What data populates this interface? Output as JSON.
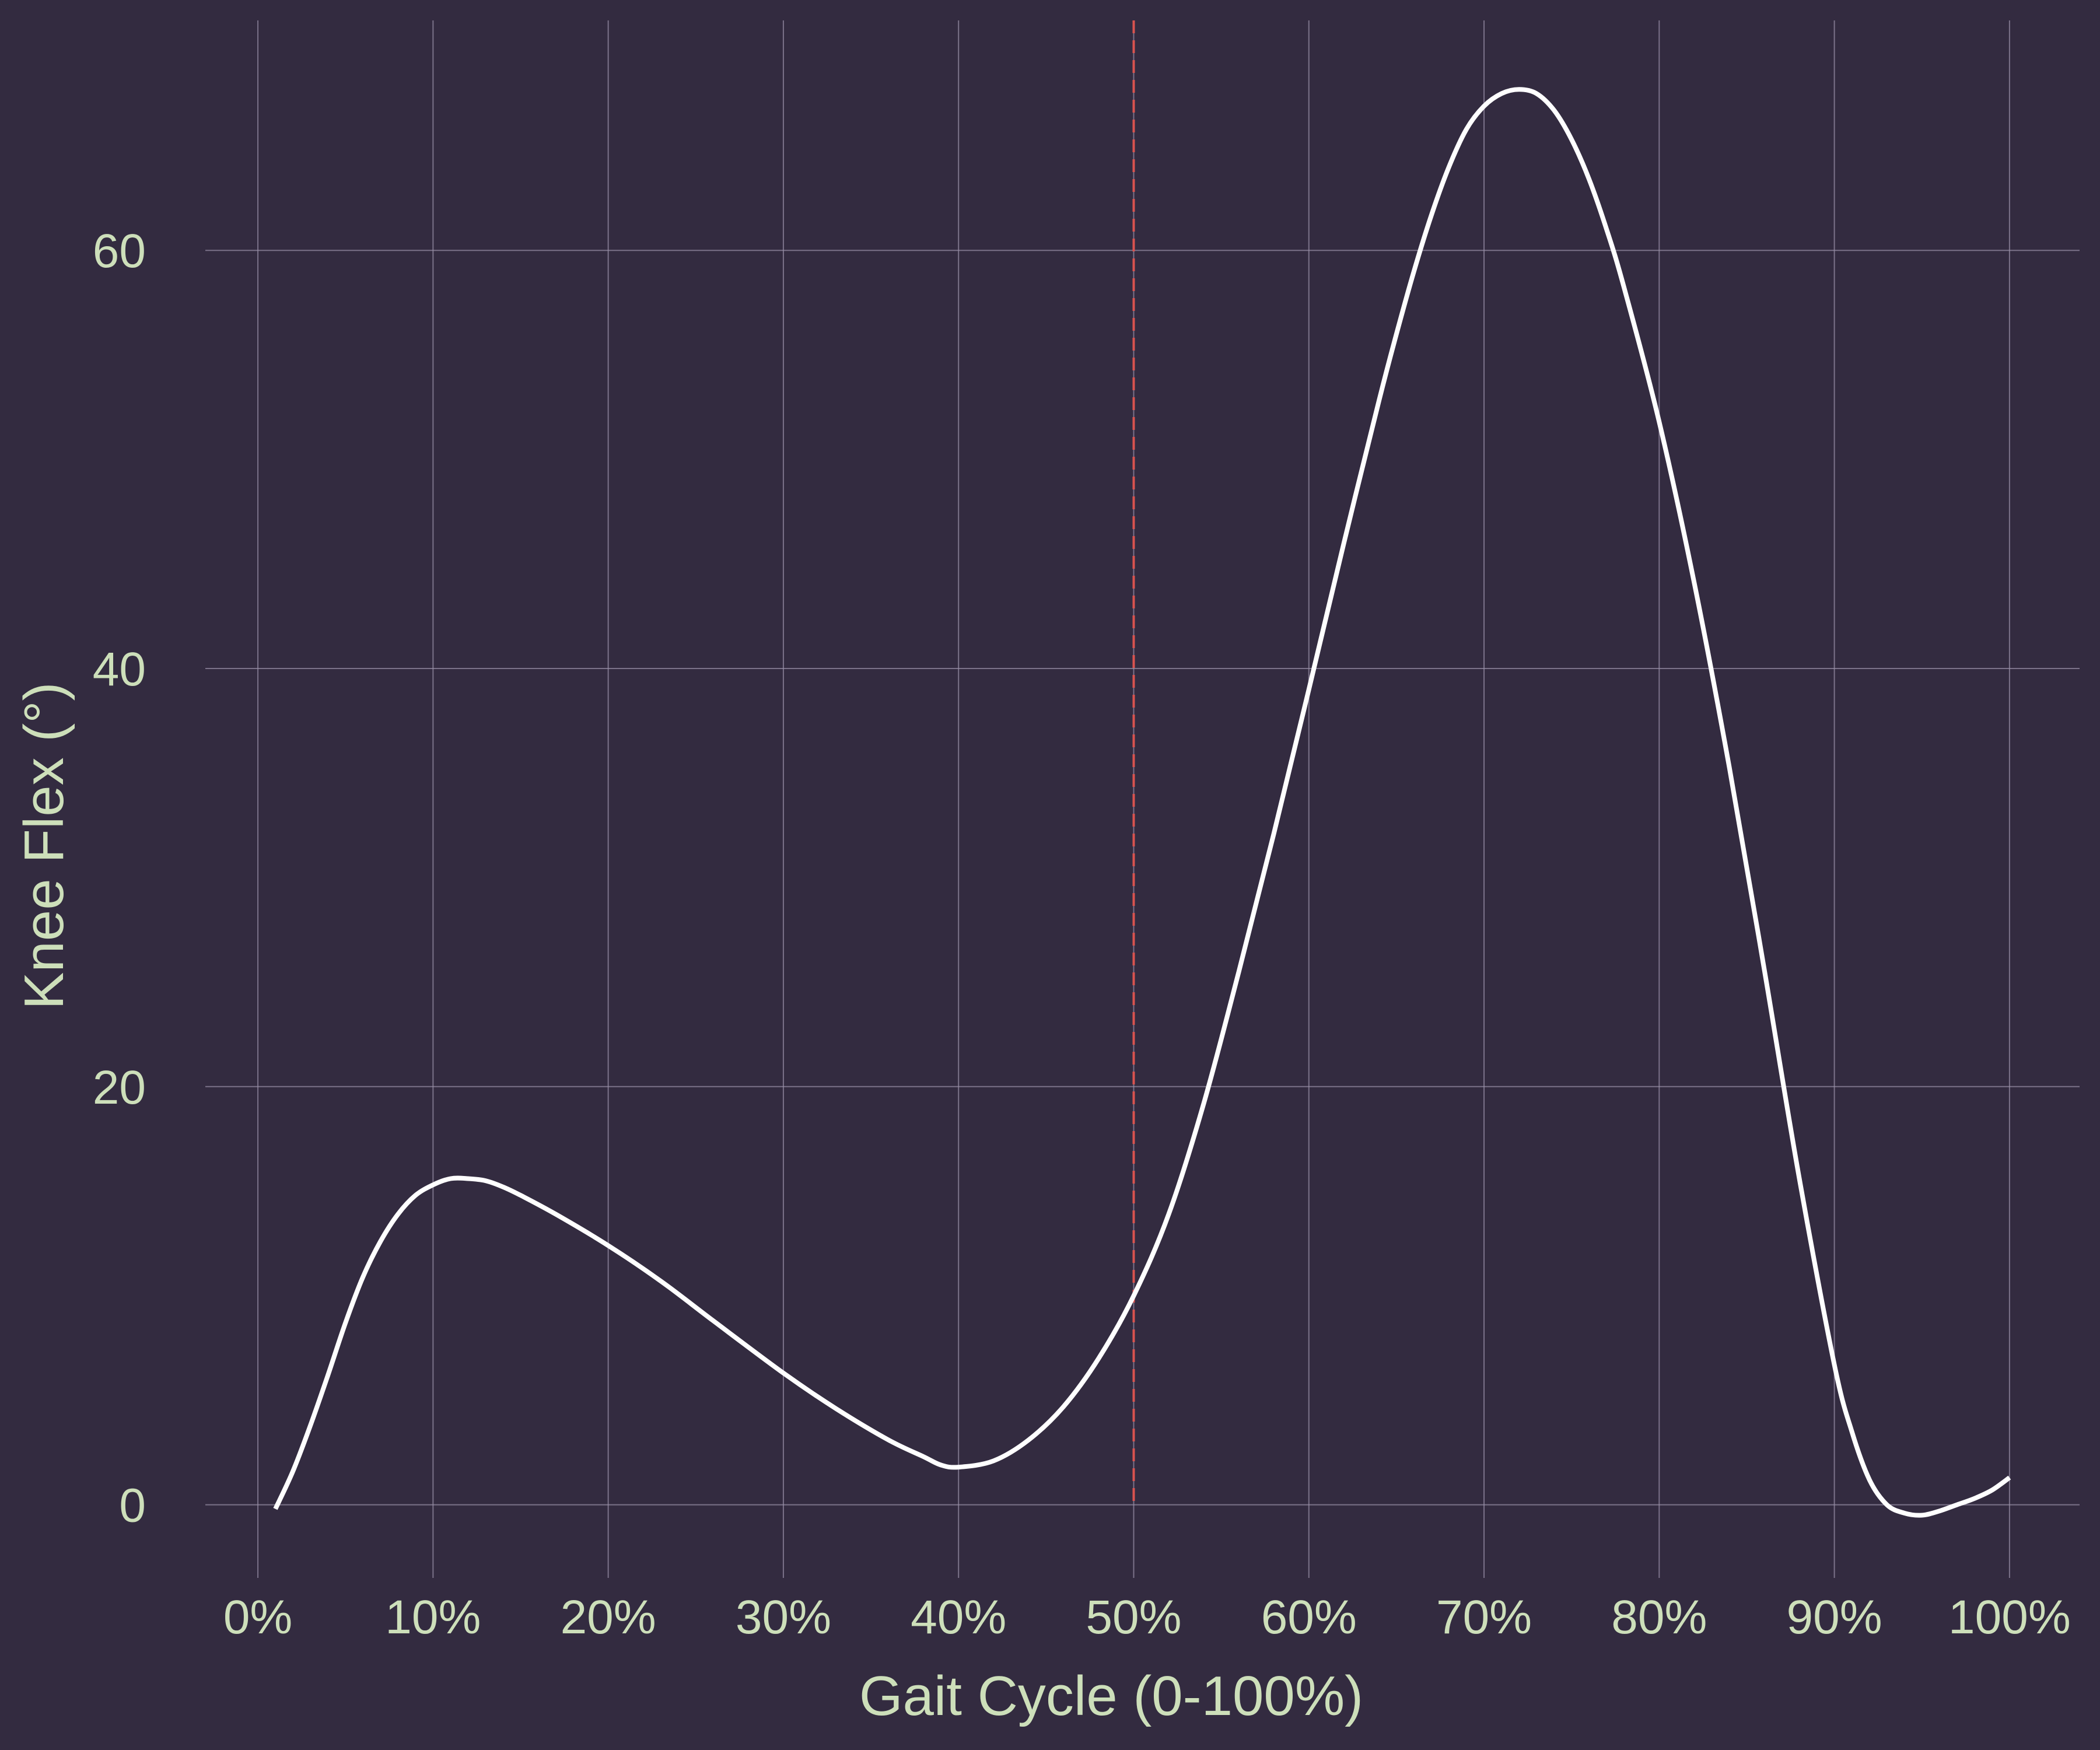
{
  "chart_data": {
    "type": "line",
    "title": "",
    "xlabel": "Gait Cycle (0-100%)",
    "ylabel": "Knee Flex (°)",
    "xlim": [
      -3,
      104
    ],
    "ylim": [
      -3.5,
      71
    ],
    "x_ticks": [
      0,
      10,
      20,
      30,
      40,
      50,
      60,
      70,
      80,
      90,
      100
    ],
    "x_tick_labels": [
      "0%",
      "10%",
      "20%",
      "30%",
      "40%",
      "50%",
      "60%",
      "70%",
      "80%",
      "90%",
      "100%"
    ],
    "y_ticks": [
      0,
      20,
      40,
      60
    ],
    "y_tick_labels": [
      "0",
      "20",
      "40",
      "60"
    ],
    "grid": true,
    "legend": "none",
    "reference_line": {
      "x": 50,
      "style": "dashed",
      "color": "#d9534f"
    },
    "series": [
      {
        "color": "#ffffff",
        "x": [
          1,
          2,
          3,
          4,
          5,
          6,
          7,
          8,
          9,
          10,
          11,
          12,
          13,
          14,
          15,
          17,
          20,
          23,
          26,
          30,
          33,
          36,
          38,
          39,
          40,
          42,
          44,
          46,
          48,
          50,
          52,
          54,
          56,
          58,
          60,
          62,
          64,
          65,
          66,
          67,
          68,
          69,
          70,
          71,
          72,
          73,
          74,
          75,
          76,
          77,
          78,
          80,
          82,
          84,
          86,
          88,
          90,
          91,
          92,
          93,
          94,
          95,
          96,
          97,
          98,
          99,
          100
        ],
        "y": [
          -0.2,
          1.6,
          3.8,
          6.2,
          8.7,
          10.9,
          12.6,
          13.9,
          14.8,
          15.3,
          15.6,
          15.6,
          15.5,
          15.2,
          14.8,
          13.9,
          12.4,
          10.7,
          8.8,
          6.3,
          4.6,
          3.1,
          2.3,
          1.9,
          1.8,
          2.1,
          3.1,
          4.7,
          7.0,
          10.0,
          13.9,
          19.2,
          25.5,
          32.1,
          39.0,
          46.0,
          52.8,
          56.0,
          59.0,
          61.7,
          64.0,
          65.8,
          66.9,
          67.5,
          67.7,
          67.5,
          66.7,
          65.3,
          63.4,
          61.0,
          58.2,
          51.8,
          44.1,
          35.3,
          25.6,
          15.6,
          6.7,
          3.5,
          1.2,
          0.0,
          -0.4,
          -0.5,
          -0.3,
          0.0,
          0.3,
          0.7,
          1.3
        ]
      }
    ]
  },
  "colors": {
    "background": "#332b40",
    "grid": "#9a92a8",
    "text": "#cddfba",
    "line": "#ffffff",
    "reference": "#d9534f"
  }
}
